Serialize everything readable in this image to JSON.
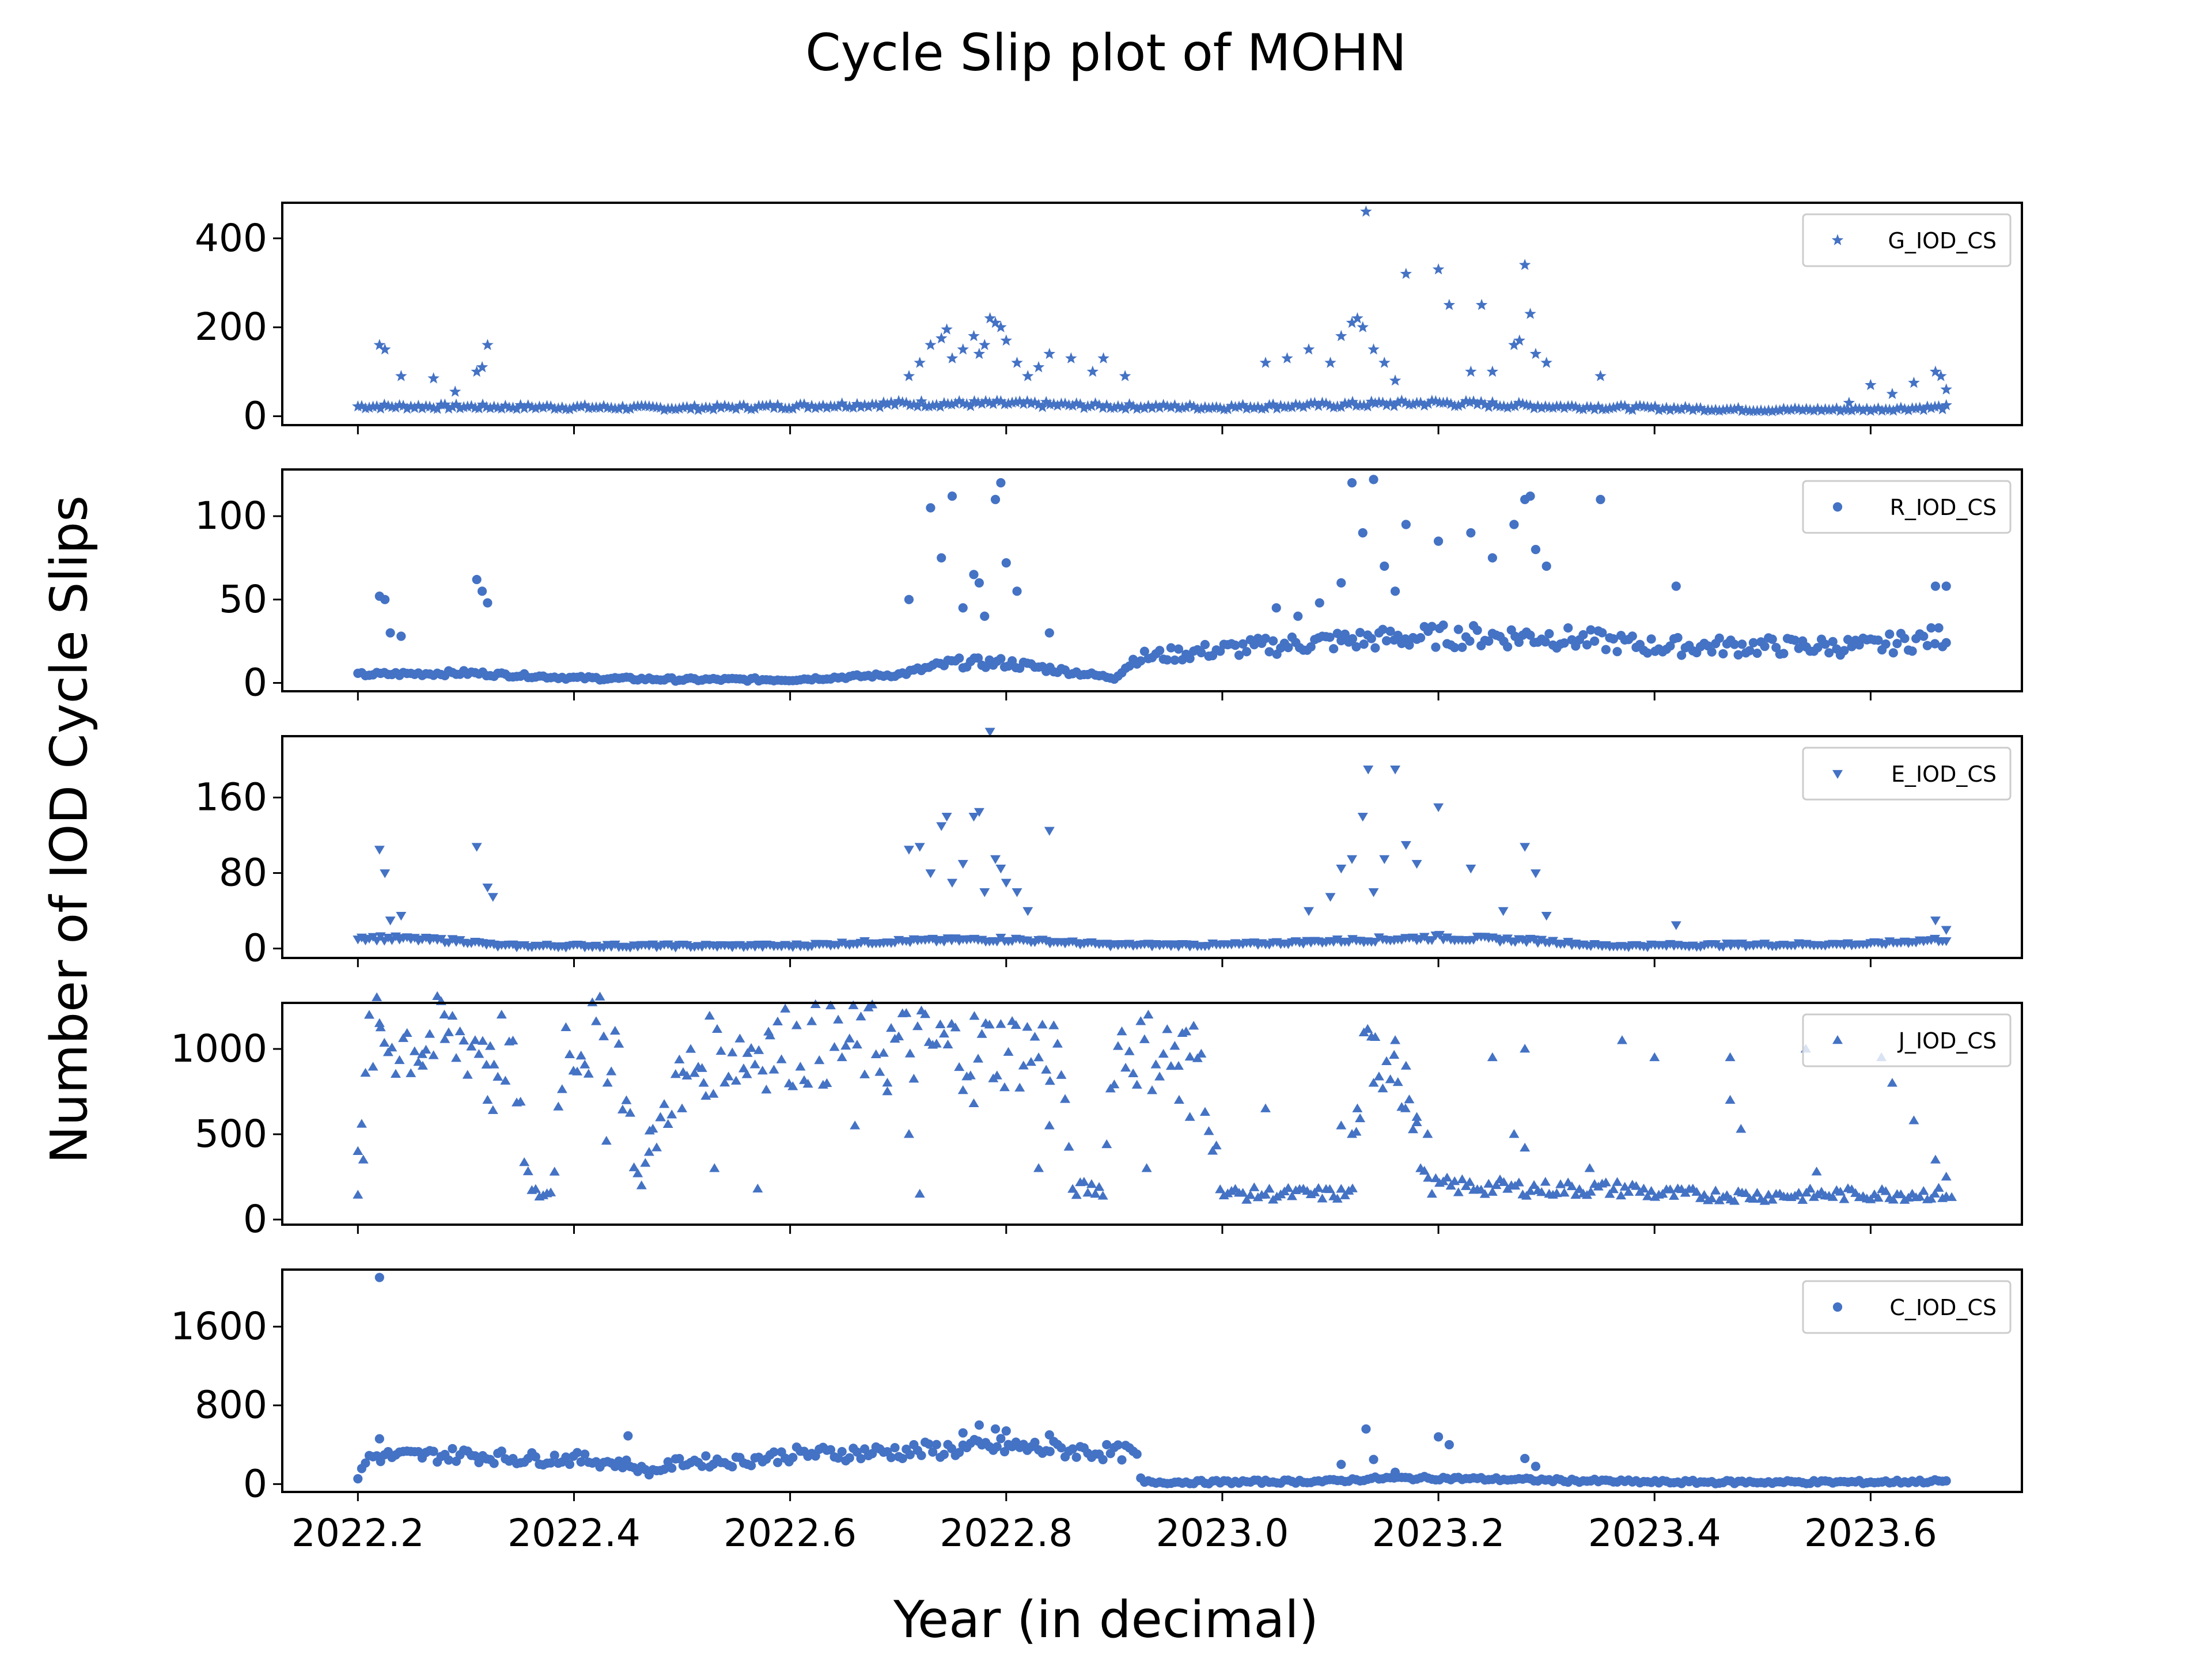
{
  "figure": {
    "title": "Cycle Slip plot of MOHN",
    "xlabel": "Year (in decimal)",
    "ylabel": "Number of IOD Cycle Slips",
    "color": "#4472c4"
  },
  "chart_data": [
    {
      "type": "scatter",
      "legend": "G_IOD_CS",
      "legend_position": "top-right",
      "marker": "star",
      "ylim": [
        -20,
        480
      ],
      "yticks": [
        0,
        200,
        400
      ],
      "xlim": [
        2022.13,
        2023.74
      ],
      "xticks": [
        2022.2,
        2022.4,
        2022.6,
        2022.8,
        2023.0,
        2023.2,
        2023.4,
        2023.6
      ],
      "x_tick_labels_visible": false,
      "base_level": [
        [
          2022.2,
          22
        ],
        [
          2022.4,
          20
        ],
        [
          2022.5,
          18
        ],
        [
          2022.6,
          22
        ],
        [
          2022.7,
          28
        ],
        [
          2022.8,
          28
        ],
        [
          2022.9,
          22
        ],
        [
          2023.0,
          20
        ],
        [
          2023.1,
          25
        ],
        [
          2023.2,
          30
        ],
        [
          2023.3,
          22
        ],
        [
          2023.4,
          18
        ],
        [
          2023.5,
          14
        ],
        [
          2023.6,
          15
        ],
        [
          2023.67,
          20
        ]
      ],
      "points": [
        [
          2022.22,
          160
        ],
        [
          2022.225,
          150
        ],
        [
          2022.24,
          90
        ],
        [
          2022.27,
          85
        ],
        [
          2022.29,
          55
        ],
        [
          2022.31,
          100
        ],
        [
          2022.315,
          110
        ],
        [
          2022.32,
          160
        ],
        [
          2022.71,
          90
        ],
        [
          2022.72,
          120
        ],
        [
          2022.73,
          160
        ],
        [
          2022.74,
          175
        ],
        [
          2022.745,
          195
        ],
        [
          2022.75,
          130
        ],
        [
          2022.76,
          150
        ],
        [
          2022.77,
          180
        ],
        [
          2022.775,
          140
        ],
        [
          2022.78,
          160
        ],
        [
          2022.785,
          220
        ],
        [
          2022.79,
          210
        ],
        [
          2022.795,
          200
        ],
        [
          2022.8,
          170
        ],
        [
          2022.81,
          120
        ],
        [
          2022.82,
          90
        ],
        [
          2022.83,
          110
        ],
        [
          2022.84,
          140
        ],
        [
          2022.86,
          130
        ],
        [
          2022.88,
          100
        ],
        [
          2022.89,
          130
        ],
        [
          2022.91,
          90
        ],
        [
          2023.04,
          120
        ],
        [
          2023.06,
          130
        ],
        [
          2023.08,
          150
        ],
        [
          2023.1,
          120
        ],
        [
          2023.11,
          180
        ],
        [
          2023.12,
          210
        ],
        [
          2023.125,
          220
        ],
        [
          2023.13,
          200
        ],
        [
          2023.133,
          460
        ],
        [
          2023.14,
          150
        ],
        [
          2023.15,
          120
        ],
        [
          2023.16,
          80
        ],
        [
          2023.17,
          320
        ],
        [
          2023.2,
          330
        ],
        [
          2023.21,
          250
        ],
        [
          2023.23,
          100
        ],
        [
          2023.24,
          250
        ],
        [
          2023.25,
          100
        ],
        [
          2023.27,
          160
        ],
        [
          2023.275,
          170
        ],
        [
          2023.28,
          340
        ],
        [
          2023.285,
          230
        ],
        [
          2023.29,
          140
        ],
        [
          2023.3,
          120
        ],
        [
          2023.35,
          90
        ],
        [
          2023.58,
          30
        ],
        [
          2023.6,
          70
        ],
        [
          2023.62,
          50
        ],
        [
          2023.64,
          75
        ],
        [
          2023.66,
          100
        ],
        [
          2023.665,
          90
        ],
        [
          2023.67,
          60
        ]
      ]
    },
    {
      "type": "scatter",
      "legend": "R_IOD_CS",
      "legend_position": "top-right",
      "marker": "circle",
      "ylim": [
        -5,
        128
      ],
      "yticks": [
        0,
        50,
        100
      ],
      "xlim": [
        2022.13,
        2023.74
      ],
      "xticks": [
        2022.2,
        2022.4,
        2022.6,
        2022.8,
        2023.0,
        2023.2,
        2023.4,
        2023.6
      ],
      "x_tick_labels_visible": false,
      "base_level": [
        [
          2022.2,
          5
        ],
        [
          2022.3,
          6
        ],
        [
          2022.4,
          3
        ],
        [
          2022.5,
          2
        ],
        [
          2022.6,
          2
        ],
        [
          2022.7,
          5
        ],
        [
          2022.75,
          12
        ],
        [
          2022.8,
          12
        ],
        [
          2022.9,
          3
        ],
        [
          2022.92,
          15
        ],
        [
          2023.0,
          20
        ],
        [
          2023.1,
          25
        ],
        [
          2023.2,
          28
        ],
        [
          2023.3,
          28
        ],
        [
          2023.4,
          22
        ],
        [
          2023.5,
          22
        ],
        [
          2023.6,
          22
        ],
        [
          2023.67,
          28
        ]
      ],
      "points": [
        [
          2022.22,
          52
        ],
        [
          2022.225,
          50
        ],
        [
          2022.23,
          30
        ],
        [
          2022.24,
          28
        ],
        [
          2022.31,
          62
        ],
        [
          2022.315,
          55
        ],
        [
          2022.32,
          48
        ],
        [
          2022.71,
          50
        ],
        [
          2022.73,
          105
        ],
        [
          2022.74,
          75
        ],
        [
          2022.75,
          112
        ],
        [
          2022.76,
          45
        ],
        [
          2022.77,
          65
        ],
        [
          2022.775,
          60
        ],
        [
          2022.78,
          40
        ],
        [
          2022.79,
          110
        ],
        [
          2022.795,
          120
        ],
        [
          2022.8,
          72
        ],
        [
          2022.81,
          55
        ],
        [
          2022.84,
          30
        ],
        [
          2023.05,
          45
        ],
        [
          2023.07,
          40
        ],
        [
          2023.09,
          48
        ],
        [
          2023.11,
          60
        ],
        [
          2023.12,
          120
        ],
        [
          2023.13,
          90
        ],
        [
          2023.14,
          122
        ],
        [
          2023.15,
          70
        ],
        [
          2023.16,
          55
        ],
        [
          2023.17,
          95
        ],
        [
          2023.2,
          85
        ],
        [
          2023.23,
          90
        ],
        [
          2023.25,
          75
        ],
        [
          2023.27,
          95
        ],
        [
          2023.28,
          110
        ],
        [
          2023.285,
          112
        ],
        [
          2023.29,
          80
        ],
        [
          2023.3,
          70
        ],
        [
          2023.35,
          110
        ],
        [
          2023.42,
          58
        ],
        [
          2023.66,
          58
        ],
        [
          2023.67,
          58
        ]
      ]
    },
    {
      "type": "scatter",
      "legend": "E_IOD_CS",
      "legend_position": "top-right",
      "marker": "triangle-down",
      "ylim": [
        -10,
        225
      ],
      "yticks": [
        0,
        80,
        160
      ],
      "xlim": [
        2022.13,
        2023.74
      ],
      "xticks": [
        2022.2,
        2022.4,
        2022.6,
        2022.8,
        2023.0,
        2023.2,
        2023.4,
        2023.6
      ],
      "x_tick_labels_visible": false,
      "base_level": [
        [
          2022.2,
          12
        ],
        [
          2022.3,
          8
        ],
        [
          2022.33,
          3
        ],
        [
          2022.6,
          3
        ],
        [
          2022.7,
          8
        ],
        [
          2022.8,
          10
        ],
        [
          2022.9,
          4
        ],
        [
          2023.0,
          4
        ],
        [
          2023.1,
          8
        ],
        [
          2023.2,
          12
        ],
        [
          2023.3,
          8
        ],
        [
          2023.35,
          3
        ],
        [
          2023.6,
          5
        ],
        [
          2023.67,
          10
        ]
      ],
      "points": [
        [
          2022.22,
          105
        ],
        [
          2022.225,
          80
        ],
        [
          2022.23,
          30
        ],
        [
          2022.24,
          35
        ],
        [
          2022.31,
          108
        ],
        [
          2022.32,
          65
        ],
        [
          2022.325,
          55
        ],
        [
          2022.71,
          105
        ],
        [
          2022.72,
          108
        ],
        [
          2022.73,
          80
        ],
        [
          2022.74,
          130
        ],
        [
          2022.745,
          140
        ],
        [
          2022.75,
          70
        ],
        [
          2022.76,
          90
        ],
        [
          2022.77,
          140
        ],
        [
          2022.775,
          145
        ],
        [
          2022.78,
          60
        ],
        [
          2022.785,
          230
        ],
        [
          2022.79,
          95
        ],
        [
          2022.795,
          85
        ],
        [
          2022.8,
          70
        ],
        [
          2022.81,
          60
        ],
        [
          2022.82,
          40
        ],
        [
          2022.84,
          125
        ],
        [
          2023.08,
          40
        ],
        [
          2023.1,
          55
        ],
        [
          2023.11,
          85
        ],
        [
          2023.12,
          95
        ],
        [
          2023.13,
          140
        ],
        [
          2023.135,
          190
        ],
        [
          2023.14,
          60
        ],
        [
          2023.15,
          95
        ],
        [
          2023.16,
          190
        ],
        [
          2023.17,
          110
        ],
        [
          2023.18,
          90
        ],
        [
          2023.2,
          150
        ],
        [
          2023.23,
          85
        ],
        [
          2023.26,
          40
        ],
        [
          2023.28,
          108
        ],
        [
          2023.29,
          80
        ],
        [
          2023.3,
          35
        ],
        [
          2023.42,
          25
        ],
        [
          2023.66,
          30
        ],
        [
          2023.67,
          20
        ]
      ]
    },
    {
      "type": "scatter",
      "legend": "J_IOD_CS",
      "legend_position": "top-right",
      "marker": "triangle-up",
      "ylim": [
        -30,
        1270
      ],
      "yticks": [
        0,
        500,
        1000
      ],
      "xlim": [
        2022.13,
        2023.74
      ],
      "xticks": [
        2022.2,
        2022.4,
        2022.6,
        2022.8,
        2023.0,
        2023.2,
        2023.4,
        2023.6
      ],
      "x_tick_labels_visible": false,
      "base_level": [
        [
          2022.2,
          150
        ],
        [
          2022.21,
          1050
        ],
        [
          2022.3,
          1050
        ],
        [
          2022.34,
          1000
        ],
        [
          2022.36,
          150
        ],
        [
          2022.38,
          150
        ],
        [
          2022.39,
          1050
        ],
        [
          2022.44,
          1050
        ],
        [
          2022.46,
          200
        ],
        [
          2022.49,
          750
        ],
        [
          2022.52,
          950
        ],
        [
          2022.56,
          1000
        ],
        [
          2022.6,
          1020
        ],
        [
          2022.7,
          1020
        ],
        [
          2022.8,
          1000
        ],
        [
          2022.85,
          1000
        ],
        [
          2022.86,
          180
        ],
        [
          2022.89,
          180
        ],
        [
          2022.9,
          1020
        ],
        [
          2022.98,
          950
        ],
        [
          2023.0,
          150
        ],
        [
          2023.1,
          150
        ],
        [
          2023.12,
          150
        ],
        [
          2023.13,
          900
        ],
        [
          2023.16,
          1000
        ],
        [
          2023.19,
          200
        ],
        [
          2023.3,
          180
        ],
        [
          2023.38,
          180
        ],
        [
          2023.4,
          150
        ],
        [
          2023.5,
          140
        ],
        [
          2023.6,
          150
        ]
      ],
      "points": [
        [
          2022.2,
          400
        ],
        [
          2022.205,
          350
        ],
        [
          2022.22,
          1150
        ],
        [
          2022.26,
          900
        ],
        [
          2022.28,
          1200
        ],
        [
          2022.32,
          700
        ],
        [
          2022.325,
          640
        ],
        [
          2022.43,
          460
        ],
        [
          2022.47,
          520
        ],
        [
          2022.48,
          600
        ],
        [
          2022.5,
          650
        ],
        [
          2022.52,
          800
        ],
        [
          2022.53,
          300
        ],
        [
          2022.56,
          850
        ],
        [
          2022.57,
          180
        ],
        [
          2022.58,
          1100
        ],
        [
          2022.66,
          550
        ],
        [
          2022.69,
          750
        ],
        [
          2022.71,
          500
        ],
        [
          2022.72,
          150
        ],
        [
          2022.77,
          680
        ],
        [
          2022.83,
          300
        ],
        [
          2022.84,
          550
        ],
        [
          2022.93,
          300
        ],
        [
          2022.96,
          700
        ],
        [
          2022.97,
          600
        ],
        [
          2023.04,
          650
        ],
        [
          2023.11,
          550
        ],
        [
          2023.12,
          500
        ],
        [
          2023.125,
          650
        ],
        [
          2023.14,
          800
        ],
        [
          2023.16,
          1050
        ],
        [
          2023.17,
          900
        ],
        [
          2023.18,
          600
        ],
        [
          2023.19,
          500
        ],
        [
          2023.25,
          950
        ],
        [
          2023.27,
          500
        ],
        [
          2023.28,
          1000
        ],
        [
          2023.28,
          420
        ],
        [
          2023.34,
          300
        ],
        [
          2023.37,
          1050
        ],
        [
          2023.4,
          950
        ],
        [
          2023.47,
          700
        ],
        [
          2023.48,
          530
        ],
        [
          2023.47,
          950
        ],
        [
          2023.54,
          1000
        ],
        [
          2023.55,
          280
        ],
        [
          2023.62,
          800
        ],
        [
          2023.64,
          580
        ],
        [
          2023.61,
          950
        ],
        [
          2023.66,
          350
        ],
        [
          2023.67,
          250
        ],
        [
          2023.675,
          130
        ]
      ]
    },
    {
      "type": "scatter",
      "legend": "C_IOD_CS",
      "legend_position": "top-right",
      "marker": "circle",
      "ylim": [
        -80,
        2180
      ],
      "yticks": [
        0,
        800,
        1600
      ],
      "xlim": [
        2022.13,
        2023.74
      ],
      "xticks": [
        2022.2,
        2022.4,
        2022.6,
        2022.8,
        2023.0,
        2023.2,
        2023.4,
        2023.6
      ],
      "x_tick_labels_visible": true,
      "base_level": [
        [
          2022.2,
          60
        ],
        [
          2022.21,
          280
        ],
        [
          2022.3,
          300
        ],
        [
          2022.35,
          260
        ],
        [
          2022.4,
          260
        ],
        [
          2022.45,
          200
        ],
        [
          2022.47,
          120
        ],
        [
          2022.5,
          230
        ],
        [
          2022.55,
          230
        ],
        [
          2022.6,
          300
        ],
        [
          2022.7,
          330
        ],
        [
          2022.8,
          380
        ],
        [
          2022.9,
          320
        ],
        [
          2022.92,
          320
        ],
        [
          2022.925,
          20
        ],
        [
          2023.0,
          20
        ],
        [
          2023.1,
          30
        ],
        [
          2023.15,
          60
        ],
        [
          2023.2,
          60
        ],
        [
          2023.3,
          40
        ],
        [
          2023.4,
          20
        ],
        [
          2023.6,
          20
        ],
        [
          2023.67,
          30
        ]
      ],
      "points": [
        [
          2022.22,
          2100
        ],
        [
          2022.22,
          460
        ],
        [
          2022.45,
          490
        ],
        [
          2022.76,
          520
        ],
        [
          2022.775,
          600
        ],
        [
          2022.79,
          560
        ],
        [
          2022.8,
          540
        ],
        [
          2022.84,
          500
        ],
        [
          2023.11,
          200
        ],
        [
          2023.133,
          560
        ],
        [
          2023.14,
          250
        ],
        [
          2023.16,
          120
        ],
        [
          2023.2,
          480
        ],
        [
          2023.21,
          400
        ],
        [
          2023.28,
          260
        ],
        [
          2023.29,
          180
        ]
      ]
    }
  ]
}
